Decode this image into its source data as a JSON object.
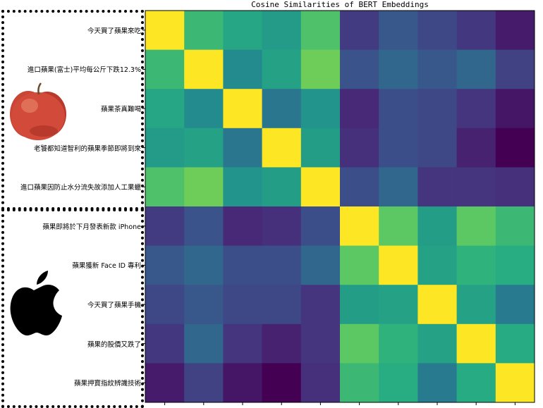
{
  "chart_data": {
    "type": "heatmap",
    "title": "Cosine Similarities of BERT Embeddings",
    "row_labels": [
      "今天買了蘋果來吃",
      "進口蘋果(富士)平均每公斤下跌12.3%",
      "蘋果茶真難喝",
      "老饕都知道智利的蘋果季節即將到來",
      "進口蘋果因防止水分流失故添加人工果蠟",
      "蘋果即將於下月發表新款 iPhone",
      "蘋果獲新 Face ID 專利",
      "今天買了蘋果手機",
      "蘋果的股價又跌了",
      "蘋果押寶指紋辨識技術"
    ],
    "values": [
      [
        1.0,
        0.68,
        0.6,
        0.55,
        0.72,
        0.18,
        0.28,
        0.22,
        0.17,
        0.08
      ],
      [
        0.68,
        1.0,
        0.48,
        0.58,
        0.78,
        0.26,
        0.34,
        0.28,
        0.34,
        0.2
      ],
      [
        0.6,
        0.48,
        1.0,
        0.4,
        0.52,
        0.12,
        0.24,
        0.22,
        0.16,
        0.06
      ],
      [
        0.55,
        0.58,
        0.4,
        1.0,
        0.56,
        0.14,
        0.24,
        0.22,
        0.1,
        0.0
      ],
      [
        0.72,
        0.78,
        0.52,
        0.56,
        1.0,
        0.24,
        0.34,
        0.16,
        0.16,
        0.14
      ],
      [
        0.18,
        0.26,
        0.12,
        0.14,
        0.24,
        1.0,
        0.75,
        0.56,
        0.75,
        0.68
      ],
      [
        0.28,
        0.34,
        0.24,
        0.24,
        0.34,
        0.75,
        1.0,
        0.58,
        0.65,
        0.63
      ],
      [
        0.22,
        0.28,
        0.22,
        0.22,
        0.16,
        0.56,
        0.58,
        1.0,
        0.58,
        0.42
      ],
      [
        0.17,
        0.34,
        0.16,
        0.1,
        0.16,
        0.75,
        0.65,
        0.58,
        1.0,
        0.62
      ],
      [
        0.08,
        0.2,
        0.06,
        0.0,
        0.14,
        0.68,
        0.63,
        0.42,
        0.62,
        1.0
      ]
    ],
    "colormap": "viridis",
    "vmin": 0.0,
    "vmax": 1.0
  },
  "images": {
    "fruit": "red-apple-icon",
    "logo": "apple-logo-icon"
  },
  "colors": {
    "apple_red": "#c0392b",
    "logo_black": "#000000"
  }
}
